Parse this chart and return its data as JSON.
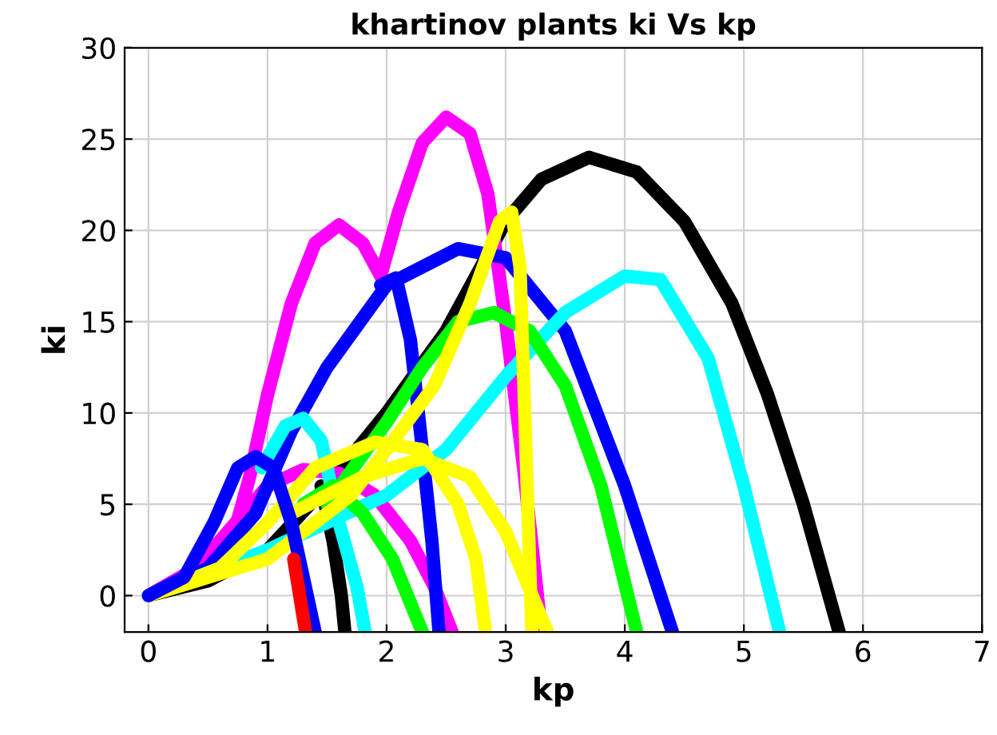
{
  "chart_data": {
    "type": "line",
    "title": "khartinov plants ki Vs kp",
    "xlabel": "kp",
    "ylabel": "ki",
    "xlim": [
      -0.2,
      7
    ],
    "xticks": [
      0,
      1,
      2,
      3,
      4,
      5,
      6,
      7
    ],
    "ylim": [
      -2,
      30
    ],
    "yticks": [
      0,
      5,
      10,
      15,
      20,
      25,
      30
    ],
    "grid": true,
    "marker": "none",
    "line_style": "solid",
    "series": [
      {
        "color": "#000000",
        "x": [
          0,
          0.5,
          1,
          1.5,
          2,
          2.5,
          3,
          3.3,
          3.7,
          4.1,
          4.5,
          4.9,
          5.2,
          5.5,
          5.8
        ],
        "values": [
          0,
          0.8,
          2.5,
          6,
          10,
          14.5,
          20.5,
          22.8,
          24,
          23.2,
          20.5,
          16,
          11,
          5,
          -2
        ]
      },
      {
        "color": "#000000",
        "x": [
          1.45,
          1.55,
          1.62,
          1.65
        ],
        "values": [
          6,
          3,
          0,
          -2
        ]
      },
      {
        "color": "#ff00ff",
        "x": [
          0.7,
          0.85,
          1.0,
          1.2,
          1.4,
          1.6,
          1.8,
          1.95,
          2.1,
          2.3,
          2.5,
          2.7,
          2.85,
          3.0,
          3.15,
          3.3
        ],
        "values": [
          3,
          6.5,
          11,
          16,
          19.3,
          20.3,
          19.3,
          17.5,
          21,
          24.8,
          26.2,
          25.3,
          22,
          15,
          7,
          -2
        ]
      },
      {
        "color": "#ff00ff",
        "x": [
          0,
          0.4,
          0.8,
          1.0,
          1.3,
          1.6,
          1.9,
          2.2,
          2.4,
          2.55
        ],
        "values": [
          0,
          1.5,
          4.5,
          6,
          6.9,
          6.7,
          5.5,
          3,
          0.5,
          -2
        ]
      },
      {
        "color": "#0000ff",
        "x": [
          0,
          0.5,
          0.9,
          1.2,
          1.5,
          2.0,
          2.6,
          3.0,
          3.5,
          4.0,
          4.4
        ],
        "values": [
          0,
          1.5,
          4.5,
          9,
          12.5,
          17,
          19,
          18.5,
          14.5,
          6,
          -2
        ]
      },
      {
        "color": "#0000ff",
        "x": [
          1.95,
          2.08,
          2.2,
          2.3,
          2.38,
          2.44
        ],
        "values": [
          17,
          17.4,
          14,
          8,
          3,
          -2
        ]
      },
      {
        "color": "#00ffff",
        "x": [
          0,
          1,
          2,
          2.5,
          3,
          3.5,
          4.0,
          4.3,
          4.7,
          5.0,
          5.3
        ],
        "values": [
          0,
          2.5,
          5.5,
          8,
          12,
          15.5,
          17.5,
          17.3,
          13,
          6,
          -2
        ]
      },
      {
        "color": "#00ffff",
        "x": [
          0.95,
          1.15,
          1.3,
          1.45,
          1.6,
          1.75,
          1.82
        ],
        "values": [
          7,
          9.3,
          9.7,
          8.5,
          4,
          0.5,
          -2
        ]
      },
      {
        "color": "#00ff00",
        "x": [
          1.5,
          2.0,
          2.3,
          2.6,
          2.9,
          3.2,
          3.5,
          3.8,
          4.1
        ],
        "values": [
          5,
          9.5,
          12.5,
          15,
          15.5,
          14.5,
          11.5,
          6,
          -2
        ]
      },
      {
        "color": "#00ff00",
        "x": [
          1.3,
          1.55,
          1.8,
          2.05,
          2.3
        ],
        "values": [
          5,
          6,
          4.5,
          2,
          -2
        ]
      },
      {
        "color": "#ffff00",
        "x": [
          0,
          1,
          1.7,
          2.0,
          2.4,
          2.7,
          2.95,
          3.05,
          3.12,
          3.17,
          3.22
        ],
        "values": [
          0,
          2,
          5.5,
          8,
          11.5,
          16,
          20.5,
          21,
          18,
          8,
          -2
        ]
      },
      {
        "color": "#ffff00",
        "x": [
          0,
          0.6,
          1.0,
          1.4,
          1.9,
          2.3,
          2.6,
          2.75,
          2.83
        ],
        "values": [
          0,
          1.5,
          4,
          7,
          8.4,
          8,
          5,
          2,
          -2
        ]
      },
      {
        "color": "#ffff00",
        "x": [
          1.2,
          1.8,
          2.3,
          2.7,
          3.0,
          3.35
        ],
        "values": [
          4.5,
          6.5,
          7.5,
          6.5,
          3.5,
          -2
        ]
      },
      {
        "color": "#0000ff",
        "x": [
          0,
          0.3,
          0.55,
          0.75,
          0.9,
          1.05,
          1.2,
          1.3,
          1.4
        ],
        "values": [
          0,
          1,
          4,
          7,
          7.6,
          7,
          4,
          1,
          -2
        ]
      },
      {
        "color": "#ff0000",
        "x": [
          1.22,
          1.27,
          1.32
        ],
        "values": [
          2,
          0,
          -2
        ]
      }
    ]
  }
}
